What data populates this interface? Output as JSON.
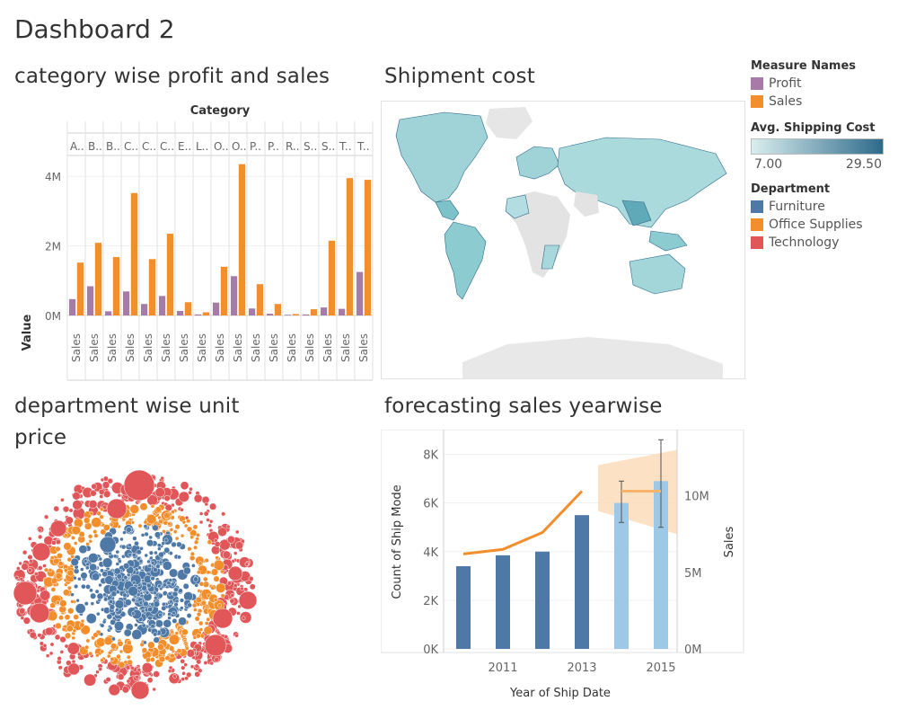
{
  "dashboard": {
    "title": "Dashboard 2"
  },
  "colors": {
    "profit": "#a87aa7",
    "sales": "#f28e2b",
    "furniture": "#4e79a7",
    "office_supplies": "#f28e2b",
    "technology": "#e15759",
    "map_low": "#d9eeee",
    "map_high": "#2e6a8a",
    "forecast_bar": "#9dc8e6",
    "forecast_band": "#fbd9b5"
  },
  "sheets": {
    "category_chart": {
      "title": "category wise profit and sales"
    },
    "map": {
      "title": "Shipment cost"
    },
    "packed": {
      "title": "department wise unit price",
      "title_line1": "department wise unit",
      "title_line2": "price"
    },
    "forecast": {
      "title": "forecasting sales yearwise"
    }
  },
  "legends": {
    "measure_names": {
      "title": "Measure Names",
      "items": [
        "Profit",
        "Sales"
      ]
    },
    "shipping_cost": {
      "title": "Avg. Shipping Cost",
      "min": "7.00",
      "max": "29.50"
    },
    "department": {
      "title": "Department",
      "items": [
        "Furniture",
        "Office Supplies",
        "Technology"
      ]
    }
  },
  "chart_data": [
    {
      "type": "bar",
      "title": "category wise profit and sales",
      "header": "Category",
      "categories": [
        "A..",
        "B..",
        "B..",
        "C..",
        "C..",
        "C..",
        "E..",
        "L..",
        "O..",
        "O..",
        "P..",
        "P..",
        "R..",
        "S..",
        "S..",
        "T..",
        "T.."
      ],
      "series": [
        {
          "name": "Profit",
          "values": [
            0.47,
            0.84,
            0.12,
            0.69,
            0.33,
            0.56,
            0.13,
            0.03,
            0.37,
            1.13,
            0.2,
            0.05,
            0.02,
            0.03,
            0.23,
            0.19,
            1.25
          ]
        },
        {
          "name": "Sales",
          "values": [
            1.52,
            2.09,
            1.68,
            3.52,
            1.62,
            2.35,
            0.38,
            0.09,
            1.4,
            4.35,
            0.9,
            0.33,
            0.04,
            0.18,
            2.15,
            3.95,
            3.9
          ]
        }
      ],
      "bottom_labels": [
        "Sales",
        "Sales",
        "Sales",
        "Sales",
        "Sales",
        "Sales",
        "Sales",
        "Sales",
        "Sales",
        "Sales",
        "Sales",
        "Sales",
        "Sales",
        "Sales",
        "Sales",
        "Sales",
        "Sales"
      ],
      "ylabel": "Value",
      "yticks": [
        "0M",
        "2M",
        "4M"
      ],
      "ylim": [
        0,
        4.6
      ]
    },
    {
      "type": "bar",
      "title": "forecasting sales yearwise",
      "x": [
        2010,
        2011,
        2012,
        2013,
        2014,
        2015
      ],
      "xticks": [
        "2011",
        "2013",
        "2015"
      ],
      "xlabel": "Year of Ship Date",
      "series": [
        {
          "name": "Count of Ship Mode",
          "values": [
            3400,
            3850,
            4000,
            5500,
            6000,
            6900
          ],
          "forecast": [
            false,
            false,
            false,
            false,
            true,
            true
          ]
        },
        {
          "name": "Sales",
          "values": [
            6.2,
            6.5,
            7.6,
            10.3,
            10.3,
            10.3
          ],
          "forecast": [
            false,
            false,
            false,
            false,
            true,
            true
          ]
        }
      ],
      "ylabel_left": "Count of Ship Mode",
      "ylabel_right": "Sales",
      "yticks_left": [
        "0K",
        "2K",
        "4K",
        "6K",
        "8K"
      ],
      "yticks_right": [
        "0M",
        "5M",
        "10M"
      ],
      "ylim_left": [
        0,
        8500
      ],
      "ylim_right": [
        0,
        13.5
      ],
      "error_bars": [
        {
          "x": 2014,
          "low": 5200,
          "high": 6900
        },
        {
          "x": 2015,
          "low": 5000,
          "high": 8600
        }
      ],
      "sales_band": {
        "x": [
          2014,
          2015
        ],
        "low": [
          9.0,
          7.5
        ],
        "high": [
          12.0,
          13.0
        ]
      }
    }
  ]
}
